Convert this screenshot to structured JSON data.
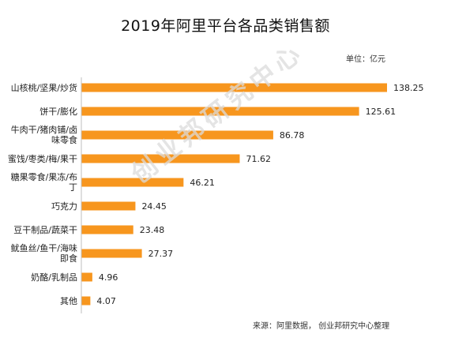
{
  "page": {
    "title": "2019年阿里平台各品类销售额",
    "unit": "单位：亿元",
    "source": "来源：阿里数据， 创业邦研究中心整理",
    "watermark": "创业邦研究中心"
  },
  "colors": {
    "bar": "#F7961E",
    "axis": "#bfbfbf",
    "text": "#222222"
  },
  "chart_data": {
    "type": "bar",
    "orientation": "horizontal",
    "title": "2019年阿里平台各品类销售额",
    "xlabel": "",
    "ylabel": "",
    "unit": "单位：亿元",
    "categories": [
      "山核桃/坚果/炒货",
      "饼干/膨化",
      "牛肉干/猪肉铺/卤味零食",
      "蜜饯/枣类/梅/果干",
      "糖果零食/果冻/布丁",
      "巧克力",
      "豆干制品/蔬菜干",
      "鱿鱼丝/鱼干/海味即食",
      "奶酪/乳制品",
      "其他"
    ],
    "values": [
      138.25,
      125.61,
      86.78,
      71.62,
      46.21,
      24.45,
      23.48,
      27.37,
      4.96,
      4.07
    ],
    "value_labels": [
      "138.25",
      "125.61",
      "86.78",
      "71.62",
      "46.21",
      "24.45",
      "23.48",
      "27.37",
      "4.96",
      "4.07"
    ],
    "xlim": [
      0,
      138.25
    ],
    "grid": false,
    "legend": "none"
  }
}
